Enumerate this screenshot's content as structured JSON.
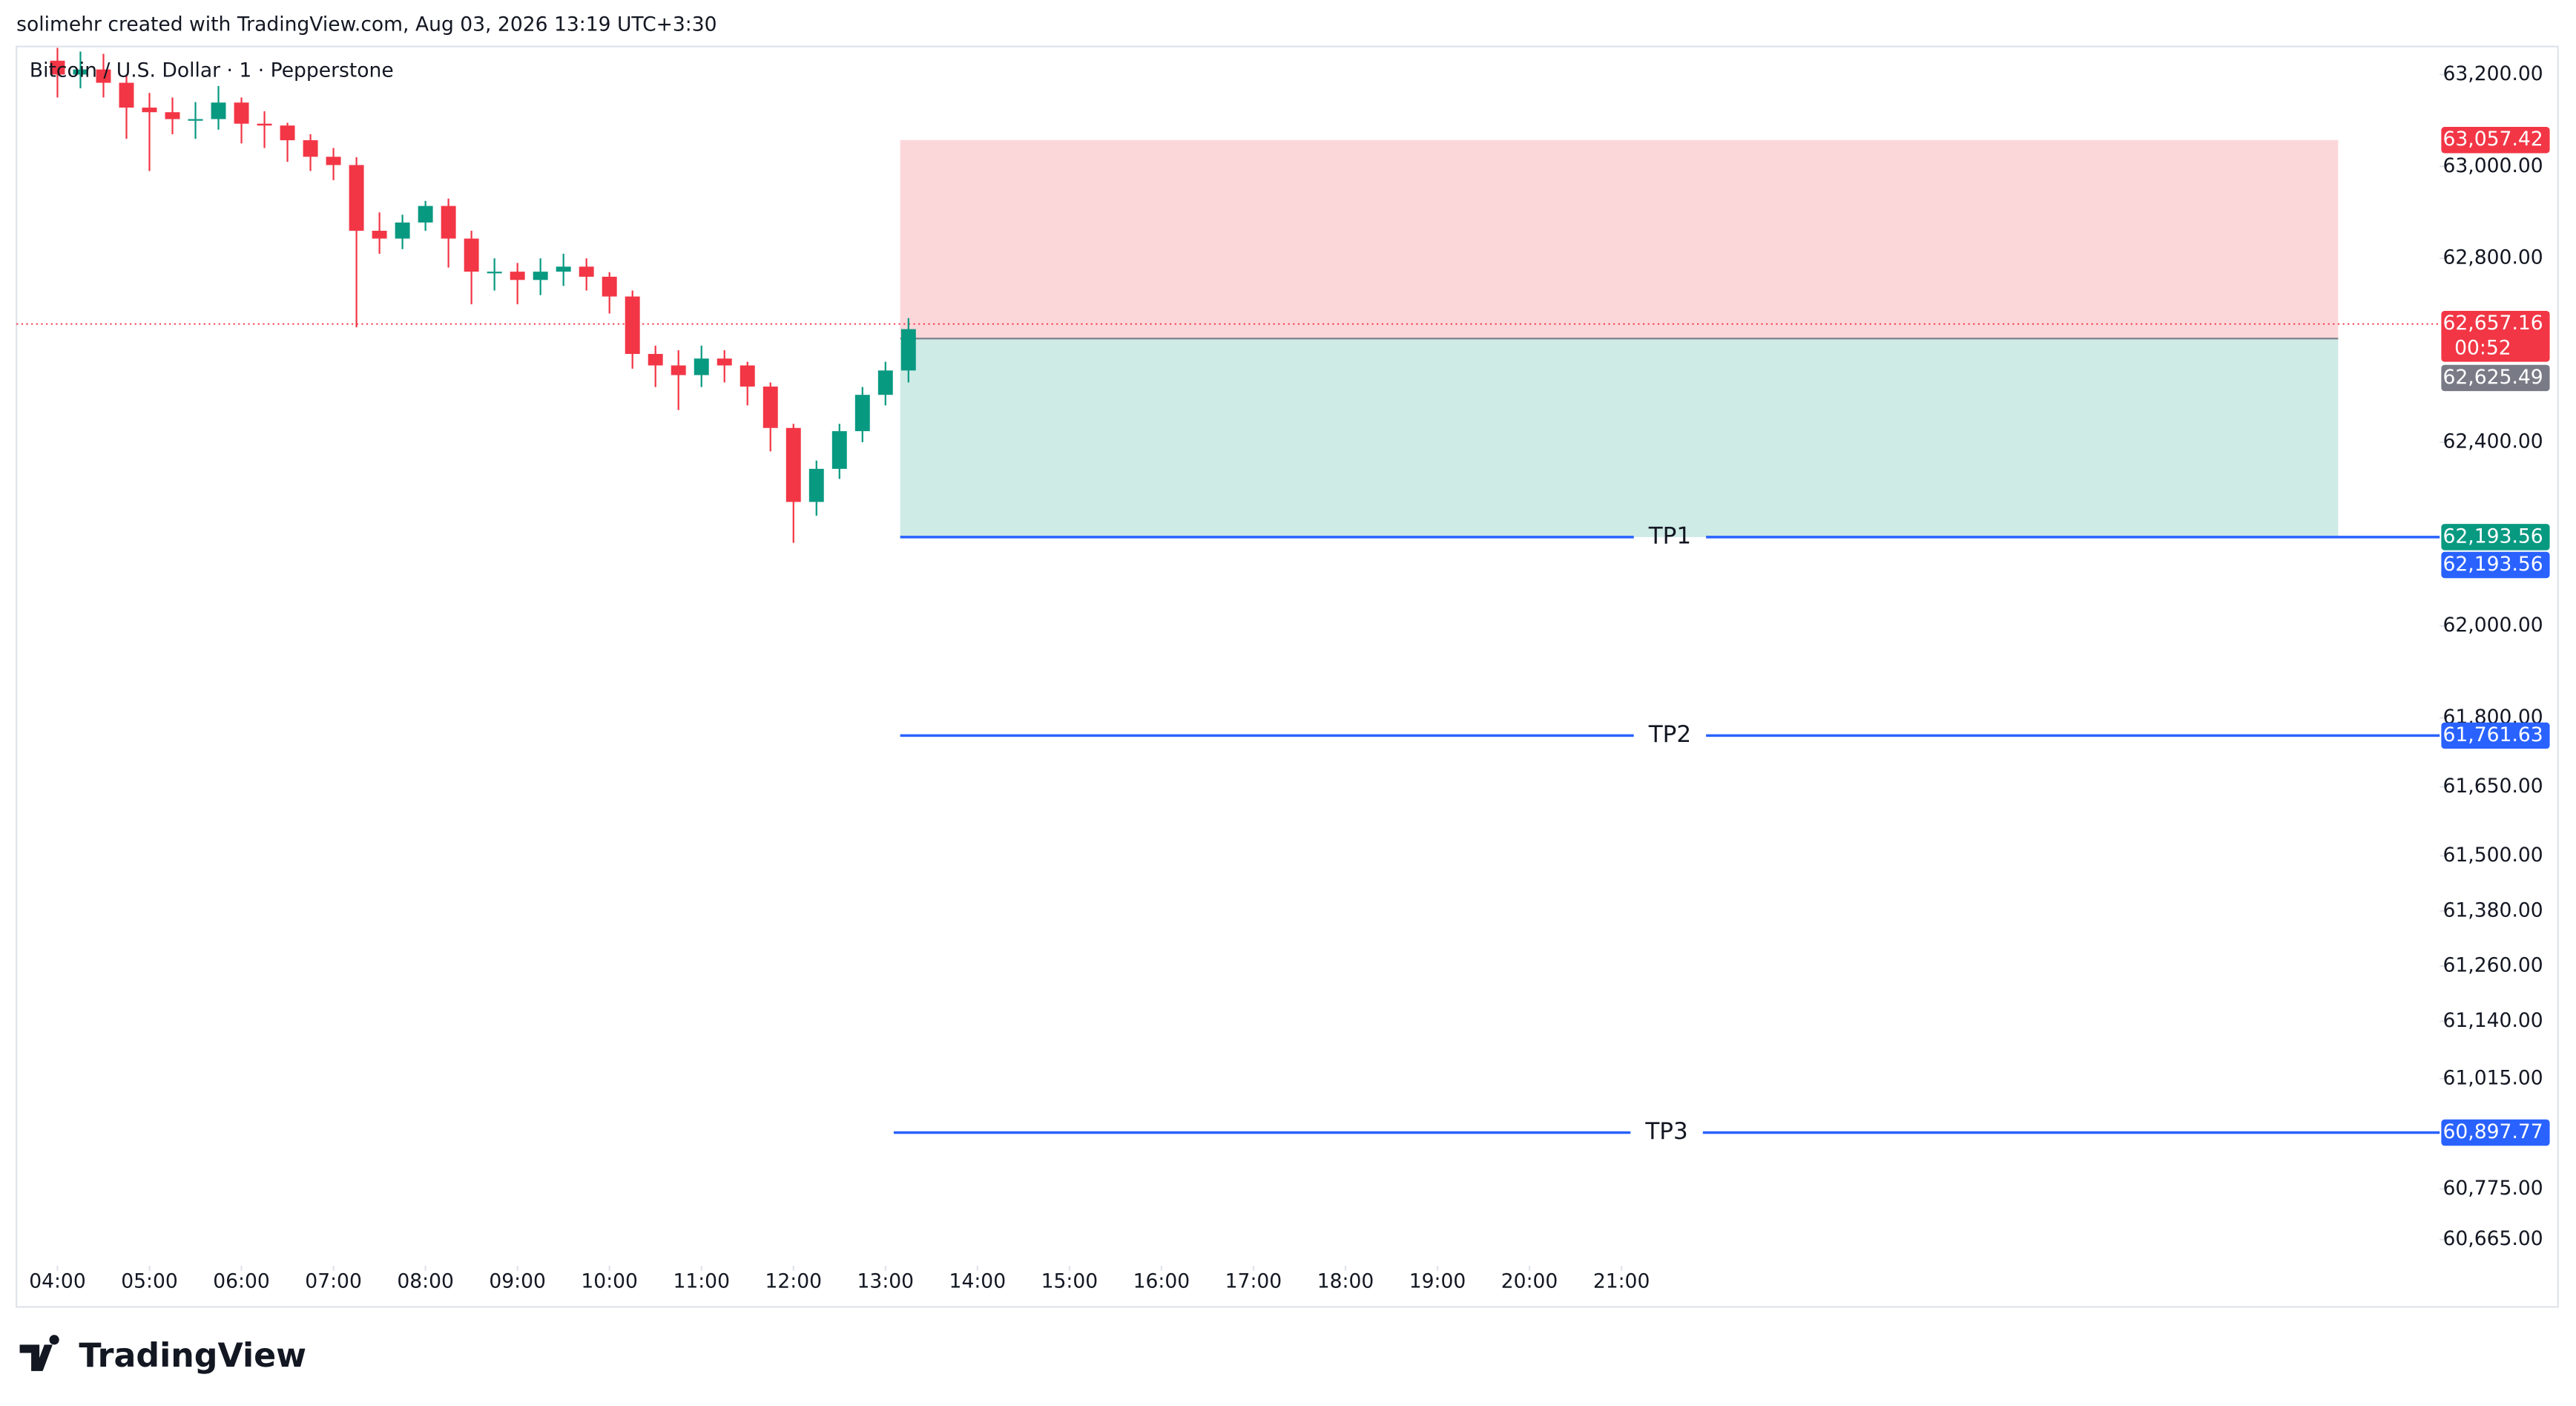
{
  "header": "solimehr created with TradingView.com, Aug 03, 2026 13:19 UTC+3:30",
  "footer_logo": "TradingView",
  "chart_data": {
    "type": "candlestick",
    "title": "Bitcoin / U.S. Dollar · 1 · Pepperstone",
    "up_color": "#089981",
    "down_color": "#f23645",
    "x": [
      4,
      4.25,
      4.5,
      4.75,
      5,
      5.25,
      5.5,
      5.75,
      6,
      6.25,
      6.5,
      6.75,
      7,
      7.25,
      7.5,
      7.75,
      8,
      8.25,
      8.5,
      8.75,
      9,
      9.25,
      9.5,
      9.75,
      10,
      10.25,
      10.5,
      10.75,
      11,
      11.25,
      11.5,
      11.75,
      12,
      12.25,
      12.5,
      12.75,
      13,
      13.25
    ],
    "open": [
      63230,
      63200,
      63211,
      63182,
      63128,
      63118,
      63103,
      63103,
      63139,
      63093,
      63089,
      63057,
      63021,
      63003,
      62860,
      62843,
      62878,
      62914,
      62843,
      62771,
      62771,
      62753,
      62771,
      62782,
      62760,
      62717,
      62592,
      62567,
      62546,
      62582,
      62567,
      62521,
      62431,
      62270,
      62342,
      62424,
      62503,
      62556
    ],
    "high": [
      63258,
      63250,
      63245,
      63200,
      63160,
      63150,
      63140,
      63175,
      63150,
      63120,
      63095,
      63070,
      63040,
      63020,
      62900,
      62895,
      62925,
      62930,
      62860,
      62800,
      62790,
      62800,
      62810,
      62800,
      62770,
      62730,
      62610,
      62600,
      62610,
      62600,
      62575,
      62530,
      62440,
      62360,
      62440,
      62520,
      62575,
      62670
    ],
    "low": [
      63150,
      63170,
      63150,
      63060,
      62990,
      63070,
      63060,
      63080,
      63050,
      63040,
      63010,
      62990,
      62970,
      62650,
      62810,
      62820,
      62860,
      62780,
      62700,
      62730,
      62700,
      62720,
      62740,
      62730,
      62680,
      62560,
      62520,
      62470,
      62520,
      62530,
      62480,
      62380,
      62181,
      62240,
      62320,
      62400,
      62480,
      62530
    ],
    "close": [
      63200,
      63211,
      63182,
      63128,
      63118,
      63103,
      63103,
      63139,
      63093,
      63089,
      63057,
      63021,
      63003,
      62860,
      62843,
      62878,
      62914,
      62843,
      62771,
      62771,
      62753,
      62771,
      62782,
      62760,
      62717,
      62592,
      62567,
      62546,
      62582,
      62567,
      62521,
      62431,
      62270,
      62342,
      62424,
      62503,
      62556,
      62646
    ],
    "xlim": [
      3.554,
      29.893
    ],
    "ylim": [
      60615,
      63261
    ],
    "xticks": [
      {
        "value": 4,
        "label": "04:00"
      },
      {
        "value": 5,
        "label": "05:00"
      },
      {
        "value": 6,
        "label": "06:00"
      },
      {
        "value": 7,
        "label": "07:00"
      },
      {
        "value": 8,
        "label": "08:00"
      },
      {
        "value": 9,
        "label": "09:00"
      },
      {
        "value": 10,
        "label": "10:00"
      },
      {
        "value": 11,
        "label": "11:00"
      },
      {
        "value": 12,
        "label": "12:00"
      },
      {
        "value": 13,
        "label": "13:00"
      },
      {
        "value": 14,
        "label": "14:00"
      },
      {
        "value": 15,
        "label": "15:00"
      },
      {
        "value": 16,
        "label": "16:00"
      },
      {
        "value": 17,
        "label": "17:00"
      },
      {
        "value": 18,
        "label": "18:00"
      },
      {
        "value": 19,
        "label": "19:00"
      },
      {
        "value": 20,
        "label": "20:00"
      },
      {
        "value": 21,
        "label": "21:00"
      }
    ],
    "yticks": [
      {
        "value": 63200,
        "label": "63,200.00"
      },
      {
        "value": 63000,
        "label": "63,000.00"
      },
      {
        "value": 62800,
        "label": "62,800.00"
      },
      {
        "value": 62400,
        "label": "62,400.00"
      },
      {
        "value": 62000,
        "label": "62,000.00"
      },
      {
        "value": 61800,
        "label": "61,800.00"
      },
      {
        "value": 61650,
        "label": "61,650.00"
      },
      {
        "value": 61500,
        "label": "61,500.00"
      },
      {
        "value": 61380,
        "label": "61,380.00"
      },
      {
        "value": 61260,
        "label": "61,260.00"
      },
      {
        "value": 61140,
        "label": "61,140.00"
      },
      {
        "value": 61015,
        "label": "61,015.00"
      },
      {
        "value": 60775,
        "label": "60,775.00"
      },
      {
        "value": 60665,
        "label": "60,665.00"
      }
    ],
    "last_price": {
      "value": 62657.16,
      "label": "62,657.16",
      "countdown": "00:52"
    },
    "position": {
      "x_start": 13.16,
      "x_end": 28.79,
      "stop": {
        "value": 63057.42,
        "label": "63,057.42"
      },
      "entry": {
        "value": 62625.49,
        "label": "62,625.49"
      },
      "target": {
        "value": 62193.56,
        "label": "62,193.56"
      },
      "stop_color": "#f23645",
      "target_color": "#089981",
      "entry_color": "#787b86"
    },
    "level_color": "#2962ff",
    "levels": [
      {
        "name": "TP1",
        "value": 62193.56,
        "label": "62,193.56",
        "x_start": 13.16
      },
      {
        "name": "TP2",
        "value": 61761.63,
        "label": "61,761.63",
        "x_start": 13.16
      },
      {
        "name": "TP3",
        "value": 60897.77,
        "label": "60,897.77",
        "x_start": 13.09
      }
    ]
  }
}
